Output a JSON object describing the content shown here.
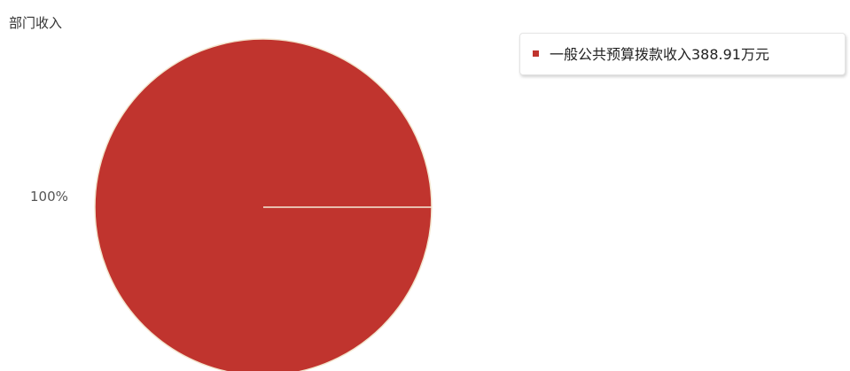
{
  "chart_data": {
    "type": "pie",
    "title": "部门收入",
    "slices": [
      {
        "name": "一般公共预算拨款收入388.91万元",
        "value": 388.91,
        "percent_label": "100%",
        "color": "#c0342e"
      }
    ],
    "legend_position": "top-right"
  }
}
